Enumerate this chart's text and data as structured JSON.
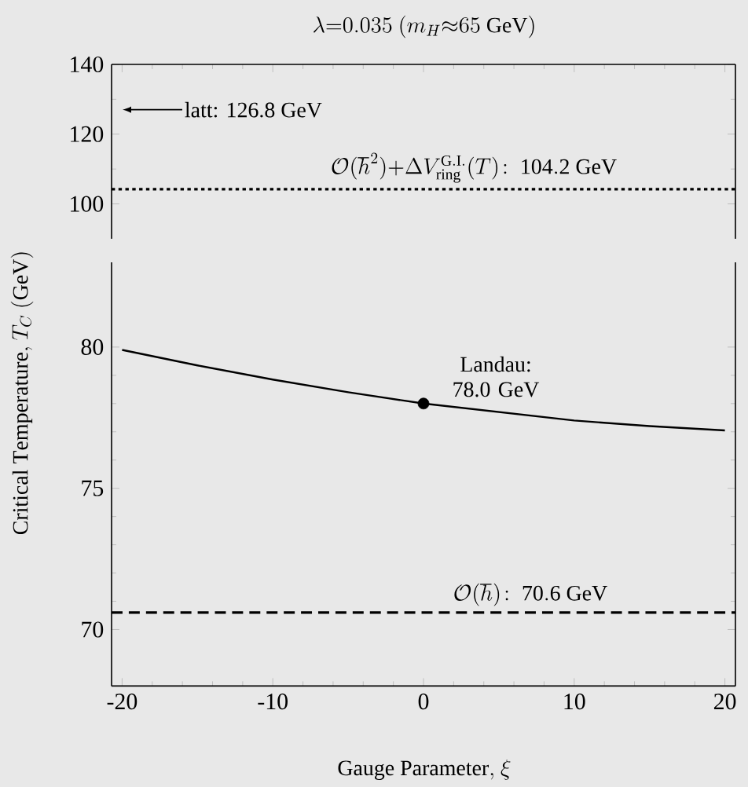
{
  "chart_data": [
    {
      "type": "line",
      "title": "\\lambda{=}0.035\\ (m_H{\\approx}65\\ \\mathrm{GeV})",
      "xlim": [
        -20.7,
        20.7
      ],
      "xticks": [
        -20,
        -10,
        0,
        10,
        20
      ],
      "ylim": [
        90,
        140
      ],
      "yticks": [
        100,
        120,
        140
      ],
      "tick_labels": "y",
      "ref_lines": [
        {
          "axis": "y",
          "value": 104.2,
          "label": "\\mathcal{O}(\\hbar^2){+}\\Delta V^{\\mathrm{G.I.}}_{\\mathrm{ring}}(T)\\!:\\ \\mathrm{104.2\\ GeV}",
          "line_style": "dotted",
          "color": "#000000"
        }
      ],
      "annotations": [
        "latt: 126.8 GeV"
      ]
    },
    {
      "type": "line",
      "xlabel": "\\mathrm{Gauge\\ Parameter,}\\ \\xi",
      "ylabel": "\\mathrm{Critical\\ Temperature,}\\ T_C\\ \\mathrm{(GeV)}",
      "xlim": [
        -20.7,
        20.7
      ],
      "xticks": [
        -20,
        -10,
        0,
        10,
        20
      ],
      "ylim": [
        68,
        83
      ],
      "yticks": [
        70,
        75,
        80
      ],
      "series": [
        {
          "type": "line",
          "color": "#000000",
          "line_style": "solid",
          "marker": "none",
          "x": [
            -20,
            -15,
            -10,
            -5,
            0,
            5,
            10,
            15,
            20
          ],
          "values": [
            79.9,
            79.35,
            78.85,
            78.4,
            78.0,
            77.7,
            77.4,
            77.2,
            77.05
          ]
        },
        {
          "type": "scatter",
          "color": "#000000",
          "marker": "circle",
          "x": [
            0
          ],
          "values": [
            78.0
          ]
        }
      ],
      "ref_lines": [
        {
          "axis": "y",
          "value": 70.6,
          "label": "\\mathcal{O}(\\hbar)\\!:\\ \\mathrm{70.6\\ GeV}",
          "line_style": "dashed",
          "color": "#000000"
        }
      ],
      "annotations": [
        {
          "text": "Landau: 78.0 GeV",
          "x": 0,
          "y": 78.0
        }
      ]
    }
  ]
}
